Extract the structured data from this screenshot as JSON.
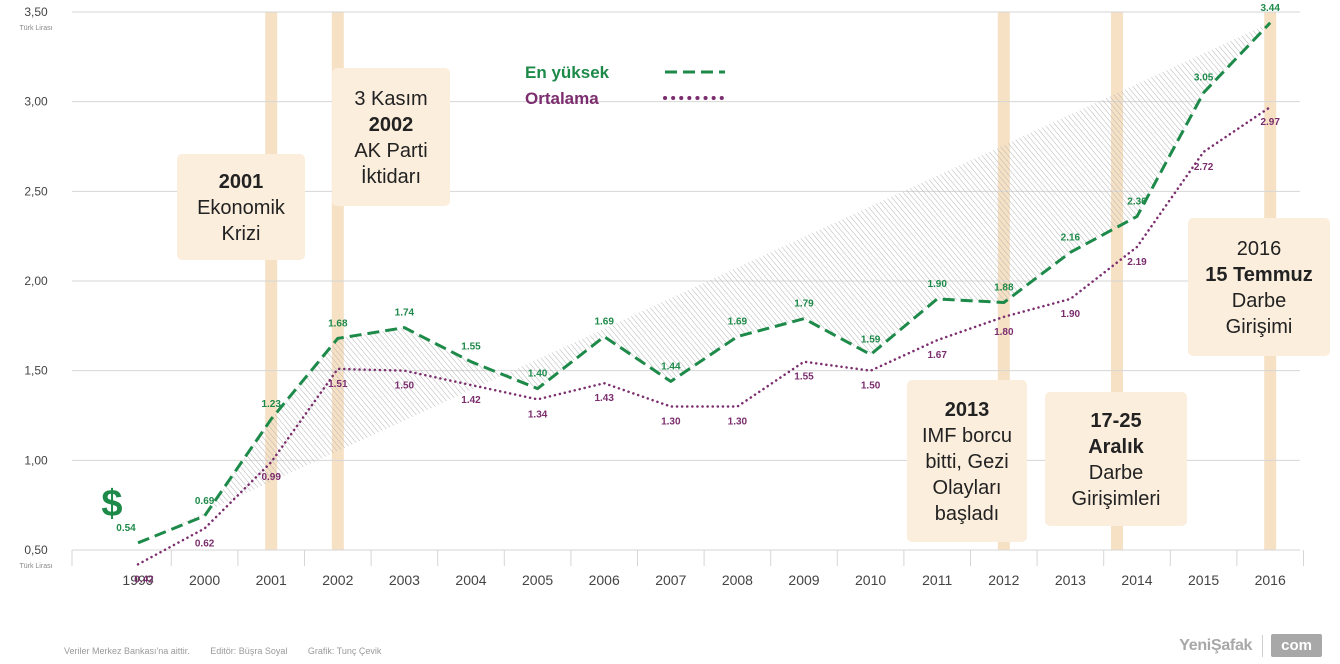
{
  "chart_data": {
    "type": "line",
    "categories": [
      "1999",
      "2000",
      "2001",
      "2002",
      "2003",
      "2004",
      "2005",
      "2006",
      "2007",
      "2008",
      "2009",
      "2010",
      "2011",
      "2012",
      "2013",
      "2014",
      "2015",
      "2016"
    ],
    "series": [
      {
        "name": "En yüksek",
        "color": "#1e8a4a",
        "style": "dashed",
        "values": [
          0.54,
          0.69,
          1.23,
          1.68,
          1.74,
          1.55,
          1.4,
          1.69,
          1.44,
          1.69,
          1.79,
          1.59,
          1.9,
          1.88,
          2.16,
          2.36,
          3.05,
          3.44
        ]
      },
      {
        "name": "Ortalama",
        "color": "#7b2d6e",
        "style": "dotted",
        "values": [
          0.42,
          0.62,
          0.99,
          1.51,
          1.5,
          1.42,
          1.34,
          1.43,
          1.3,
          1.3,
          1.55,
          1.5,
          1.67,
          1.8,
          1.9,
          2.19,
          2.72,
          2.97
        ]
      }
    ],
    "yticks": [
      "0,50",
      "1,00",
      "1,50",
      "2,00",
      "2,50",
      "3,00",
      "3,50"
    ],
    "ylim": [
      0.5,
      3.5
    ],
    "yunit_top": "Türk Lirası",
    "yunit_bottom": "Türk Lirası",
    "currency_symbol": "$",
    "legend": {
      "position": "top-center"
    },
    "annotations": [
      {
        "year": "2001",
        "lines": [
          [
            "2001",
            true
          ],
          [
            "Ekonomik",
            false
          ],
          [
            "Krizi",
            false
          ]
        ]
      },
      {
        "year": "2002",
        "lines": [
          [
            "3 Kasım",
            false
          ],
          [
            "2002",
            true
          ],
          [
            "AK Parti",
            false
          ],
          [
            "İktidarı",
            false
          ]
        ]
      },
      {
        "year": "2012",
        "lines": [
          [
            "2013",
            true
          ],
          [
            "IMF borcu",
            false
          ],
          [
            "bitti, Gezi",
            false
          ],
          [
            "Olayları",
            false
          ],
          [
            "başladı",
            false
          ]
        ]
      },
      {
        "year": "2014",
        "lines": [
          [
            "17-25",
            true
          ],
          [
            "Aralık",
            true
          ],
          [
            "Darbe",
            false
          ],
          [
            "Girişimleri",
            false
          ]
        ]
      },
      {
        "year": "2016",
        "lines": [
          [
            "2016",
            false
          ],
          [
            "15 Temmuz",
            true
          ],
          [
            "Darbe",
            false
          ],
          [
            "Girişimi",
            false
          ]
        ]
      }
    ],
    "colors": {
      "highlight_band": "#f7e1c5",
      "annotation_box": "#fbeedd",
      "grid": "#d6d6d6",
      "axis_text": "#444444",
      "hatch": "#b5b5b5",
      "currency": "#1e8a4a"
    }
  },
  "footer": {
    "source": "Veriler Merkez Bankası'na aittir.",
    "editor": "Editör: Büşra Soyal",
    "graphic": "Grafik: Tunç Çevik"
  },
  "brand": {
    "name": "YeniŞafak",
    "suffix": "com"
  }
}
